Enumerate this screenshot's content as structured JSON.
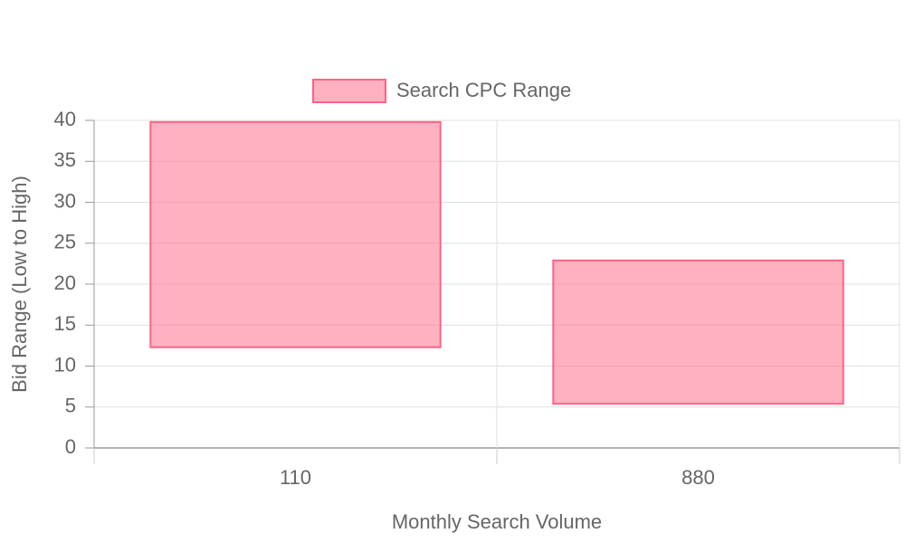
{
  "chart_data": {
    "type": "floating-bar",
    "categories": [
      "110",
      "880"
    ],
    "series": [
      {
        "name": "Search CPC Range",
        "color": "#ff6384",
        "values": [
          [
            12.3,
            39.8
          ],
          [
            5.4,
            22.9
          ]
        ]
      }
    ],
    "ylim": [
      0,
      40
    ],
    "yticks": [
      0,
      5,
      10,
      15,
      20,
      25,
      30,
      35,
      40
    ],
    "xlabel": "Monthly Search Volume",
    "ylabel": "Bid Range (Low to High)",
    "grid": true,
    "legend": "top"
  }
}
